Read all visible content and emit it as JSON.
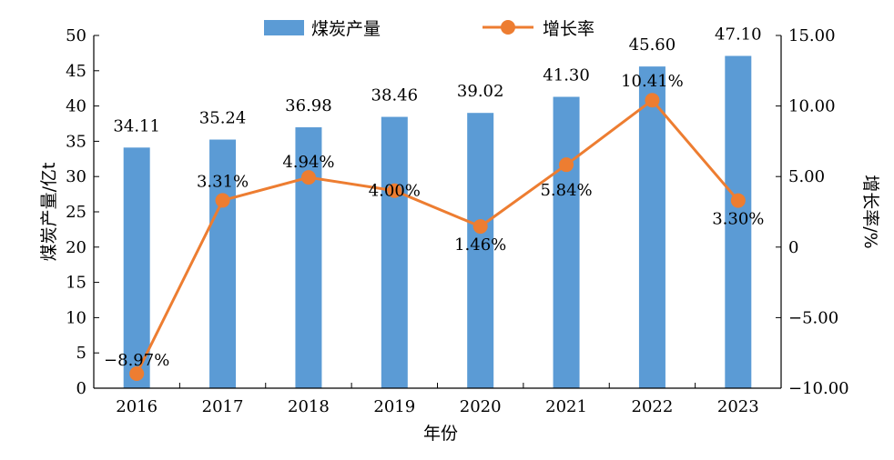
{
  "chart_data": {
    "type": "bar",
    "categories": [
      "2016",
      "2017",
      "2018",
      "2019",
      "2020",
      "2021",
      "2022",
      "2023"
    ],
    "series": [
      {
        "name": "煤炭产量",
        "type": "bar",
        "axis": "left",
        "color": "#5b9bd5",
        "values": [
          34.11,
          35.24,
          36.98,
          38.46,
          39.02,
          41.3,
          45.6,
          47.1
        ],
        "labels": [
          "34.11",
          "35.24",
          "36.98",
          "38.46",
          "39.02",
          "41.30",
          "45.60",
          "47.10"
        ]
      },
      {
        "name": "增长率",
        "type": "line",
        "axis": "right",
        "color": "#ed7d31",
        "values": [
          -8.97,
          3.31,
          4.94,
          4.0,
          1.46,
          5.84,
          10.41,
          3.3
        ],
        "labels": [
          "−8.97%",
          "3.31%",
          "4.94%",
          "4.00%",
          "1.46%",
          "5.84%",
          "10.41%",
          "3.30%"
        ]
      }
    ],
    "xlabel": "年份",
    "ylabel": "煤炭产量/亿t",
    "y2label": "增长率/%",
    "ylim": [
      0,
      50
    ],
    "y2lim": [
      -10,
      15
    ],
    "yticks": [
      "0",
      "5",
      "10",
      "15",
      "20",
      "25",
      "30",
      "35",
      "40",
      "45",
      "50"
    ],
    "y2ticks": [
      "−10.00",
      "−5.00",
      "0",
      "5.00",
      "10.00",
      "15.00"
    ],
    "legend_position": "top-center",
    "grid": false
  }
}
